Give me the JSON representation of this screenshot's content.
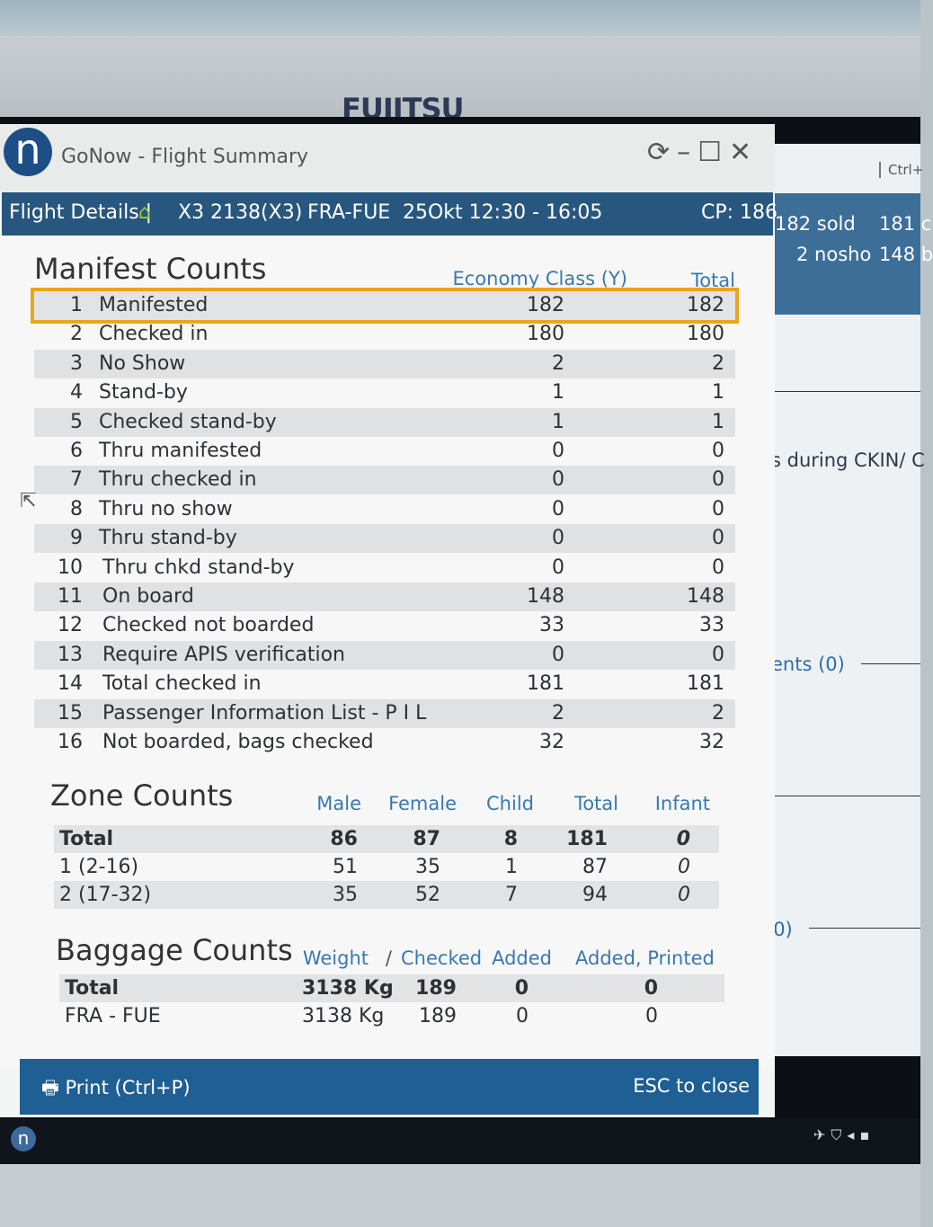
{
  "monitor": {
    "brand": "FUJITSU"
  },
  "window": {
    "app_logo": "n",
    "title": "GoNow - Flight Summary",
    "controls": [
      "refresh-icon",
      "minimize-icon",
      "maximize-icon",
      "close-icon"
    ]
  },
  "flight_bar": {
    "label": "Flight Details |",
    "flight": "X3 2138(X3)",
    "route": "FRA-FUE",
    "date_time": "25Okt 12:30 - 16:05",
    "cp": "CP: 186"
  },
  "manifest": {
    "title": "Manifest Counts",
    "col_economy": "Economy Class (Y)",
    "col_total": "Total",
    "rows": [
      {
        "n": "1",
        "label": "Manifested",
        "economy": "182",
        "total": "182"
      },
      {
        "n": "2",
        "label": "Checked in",
        "economy": "180",
        "total": "180"
      },
      {
        "n": "3",
        "label": "No Show",
        "economy": "2",
        "total": "2"
      },
      {
        "n": "4",
        "label": "Stand-by",
        "economy": "1",
        "total": "1"
      },
      {
        "n": "5",
        "label": "Checked stand-by",
        "economy": "1",
        "total": "1"
      },
      {
        "n": "6",
        "label": "Thru manifested",
        "economy": "0",
        "total": "0"
      },
      {
        "n": "7",
        "label": "Thru checked in",
        "economy": "0",
        "total": "0"
      },
      {
        "n": "8",
        "label": "Thru no show",
        "economy": "0",
        "total": "0"
      },
      {
        "n": "9",
        "label": "Thru stand-by",
        "economy": "0",
        "total": "0"
      },
      {
        "n": "10",
        "label": "Thru chkd stand-by",
        "economy": "0",
        "total": "0"
      },
      {
        "n": "11",
        "label": "On board",
        "economy": "148",
        "total": "148"
      },
      {
        "n": "12",
        "label": "Checked not boarded",
        "economy": "33",
        "total": "33"
      },
      {
        "n": "13",
        "label": "Require APIS verification",
        "economy": "0",
        "total": "0"
      },
      {
        "n": "14",
        "label": "Total checked in",
        "economy": "181",
        "total": "181"
      },
      {
        "n": "15",
        "label": "Passenger Information List - P I L",
        "economy": "2",
        "total": "2"
      },
      {
        "n": "16",
        "label": "Not boarded, bags checked",
        "economy": "32",
        "total": "32"
      }
    ]
  },
  "zones": {
    "title": "Zone Counts",
    "headers": [
      "Male",
      "Female",
      "Child",
      "Total",
      "Infant"
    ],
    "rows": [
      {
        "label": "Total",
        "male": "86",
        "female": "87",
        "child": "8",
        "total": "181",
        "infant": "0"
      },
      {
        "label": "1 (2-16)",
        "male": "51",
        "female": "35",
        "child": "1",
        "total": "87",
        "infant": "0"
      },
      {
        "label": "2 (17-32)",
        "male": "35",
        "female": "52",
        "child": "7",
        "total": "94",
        "infant": "0"
      }
    ]
  },
  "baggage": {
    "title": "Baggage Counts",
    "headers": {
      "weight": "Weight",
      "sep": "/",
      "checked": "Checked",
      "added": "Added",
      "added_printed": "Added, Printed"
    },
    "rows": [
      {
        "label": "Total",
        "weight": "3138 Kg",
        "checked": "189",
        "added": "0",
        "added_printed": "0"
      },
      {
        "label": "FRA - FUE",
        "weight": "3138 Kg",
        "checked": "189",
        "added": "0",
        "added_printed": "0"
      }
    ]
  },
  "footer": {
    "print": "Print (Ctrl+P)",
    "esc": "ESC to close"
  },
  "background_app": {
    "ctrl": "Ctrl+",
    "sold": "182 sold",
    "sold_val": "181 c",
    "nosho": "2 nosho",
    "nosho_val": "148 b",
    "ckin": "s during CKIN/ C",
    "ents": "ents (0)",
    "zero": "(0)"
  }
}
